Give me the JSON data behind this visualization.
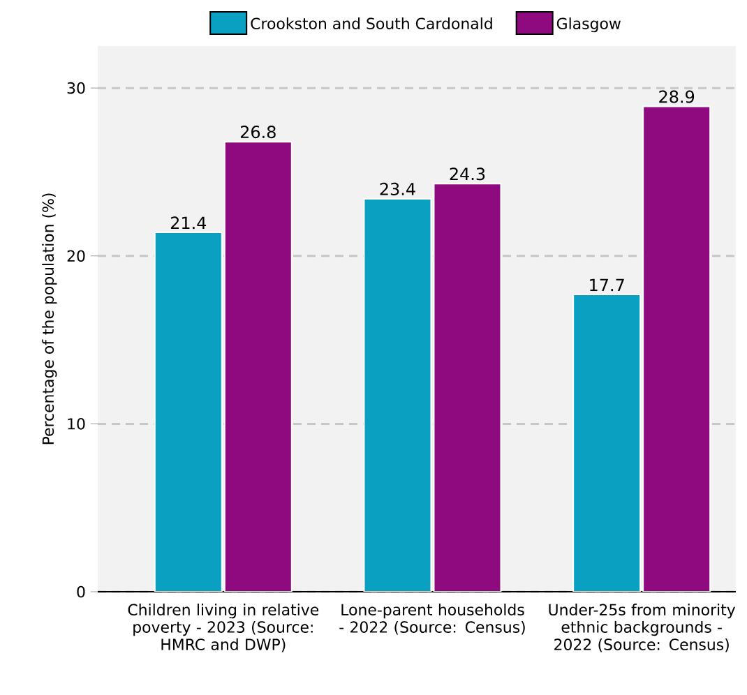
{
  "chart_data": {
    "type": "bar",
    "ylabel": "Percentage of the population (%)",
    "categories": [
      "Children living in relative poverty - 2023 (Source: HMRC and DWP)",
      "Lone-parent households - 2022 (Source: Census)",
      "Under-25s from minority ethnic backgrounds - 2022 (Source: Census)"
    ],
    "series": [
      {
        "name": "Crookston and South Cardonald",
        "color": "#0aa0c2",
        "values": [
          21.4,
          23.4,
          17.7
        ]
      },
      {
        "name": "Glasgow",
        "color": "#8e0a7e",
        "values": [
          26.8,
          24.3,
          28.9
        ]
      }
    ],
    "ylim": [
      0,
      32.5
    ],
    "yticks": [
      0,
      10,
      20,
      30
    ],
    "grid": "y",
    "legend": "top",
    "data_labels": true
  }
}
